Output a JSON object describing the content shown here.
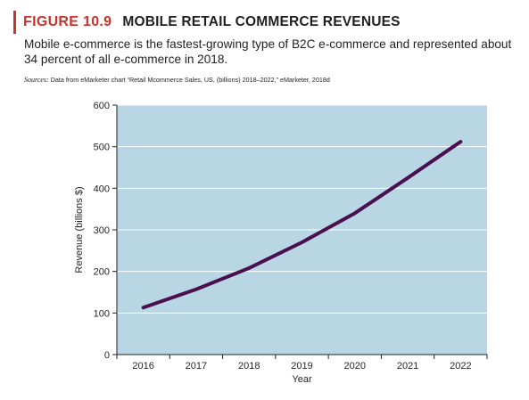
{
  "figure": {
    "number": "FIGURE 10.9",
    "title": "MOBILE RETAIL COMMERCE REVENUES",
    "caption": "Mobile e-commerce is the fastest-growing type of B2C e-commerce and represented about 34 percent of all e-commerce in 2018.",
    "sources_label": "Sources:",
    "sources_text": "Data from eMarketer chart “Retail Mcommerce Sales, US, (billions) 2018–2022,” eMarketer, 2018d"
  },
  "colors": {
    "accent": "#c8342b",
    "plot_background": "#b8d6e4",
    "line": "#4a0f4e",
    "grid": "#ffffff"
  },
  "chart_data": {
    "type": "line",
    "title": "",
    "xlabel": "Year",
    "ylabel": "Revenue (billions $)",
    "x": [
      "2016",
      "2017",
      "2018",
      "2019",
      "2020",
      "2021",
      "2022"
    ],
    "series": [
      {
        "values": [
          113,
          157,
          208,
          270,
          340,
          425,
          512
        ]
      }
    ],
    "ylim": [
      0,
      600
    ],
    "yticks": [
      0,
      100,
      200,
      300,
      400,
      500,
      600
    ],
    "grid": true,
    "legend": "none"
  }
}
